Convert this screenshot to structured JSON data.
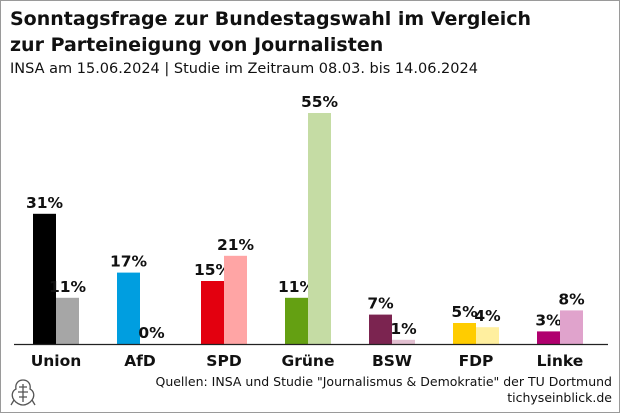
{
  "header": {
    "title_line1": "Sonntagsfrage zur Bundestagswahl im Vergleich",
    "title_line2": "zur Parteineigung von Journalisten",
    "subtitle": "INSA am 15.06.2024  |  Studie im Zeitraum 08.03. bis 14.06.2024"
  },
  "footer": {
    "source": "Quellen: INSA und Studie \"Journalismus & Demokratie\" der TU Dortmund",
    "site": "tichyseinblick.de",
    "logo_icon": "eagle-logo-icon"
  },
  "chart_data": {
    "type": "bar",
    "categories": [
      "Union",
      "AfD",
      "SPD",
      "Grüne",
      "BSW",
      "FDP",
      "Linke"
    ],
    "series": [
      {
        "values": [
          31,
          17,
          15,
          11,
          7,
          5,
          3
        ],
        "colors": [
          "#000000",
          "#009ee0",
          "#e3000f",
          "#64a012",
          "#7b2450",
          "#ffcc00",
          "#b0006e"
        ]
      },
      {
        "values": [
          11,
          0,
          21,
          55,
          1,
          4,
          8
        ],
        "colors": [
          "#a6a6a6",
          "#009ee0",
          "#ffa5a5",
          "#c5dca4",
          "#e2bfd0",
          "#ffef9f",
          "#e0a3cc"
        ]
      }
    ],
    "value_labels": [
      [
        "31%",
        "17%",
        "15%",
        "11%",
        "7%",
        "5%",
        "3%"
      ],
      [
        "11%",
        "0%",
        "21%",
        "55%",
        "1%",
        "4%",
        "8%"
      ]
    ],
    "ylim": [
      0,
      55
    ],
    "grid": false,
    "legend": "none"
  }
}
